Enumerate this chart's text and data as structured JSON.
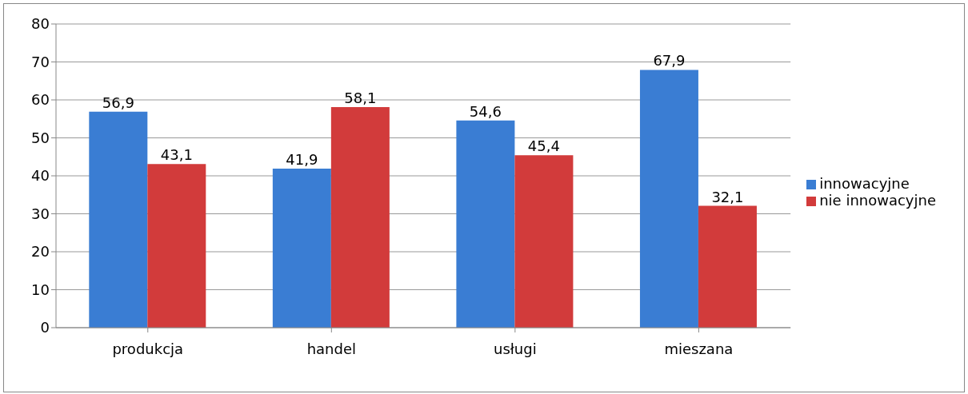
{
  "chart_data": {
    "type": "bar",
    "categories": [
      "produkcja",
      "handel",
      "usługi",
      "mieszana"
    ],
    "series": [
      {
        "name": "innowacyjne",
        "color": "#3a7dd3",
        "values": [
          56.9,
          41.9,
          54.6,
          67.9
        ],
        "value_labels": [
          "56,9",
          "41,9",
          "54,6",
          "67,9"
        ]
      },
      {
        "name": "nie innowacyjne",
        "color": "#d23b3b",
        "values": [
          43.1,
          58.1,
          45.4,
          32.1
        ],
        "value_labels": [
          "43,1",
          "58,1",
          "45,4",
          "32,1"
        ]
      }
    ],
    "ylim": [
      0,
      80
    ],
    "yticks": [
      0,
      10,
      20,
      30,
      40,
      50,
      60,
      70,
      80
    ],
    "grid": "y",
    "legend": "right"
  }
}
